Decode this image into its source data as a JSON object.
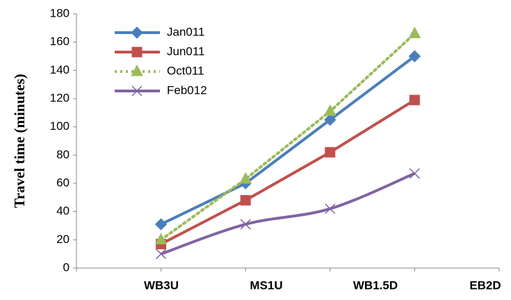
{
  "chart_data": {
    "type": "line",
    "y_label": "Travel time (minutes)",
    "categories": [
      "WB3U",
      "MS1U",
      "WB1.5D",
      "EB2D"
    ],
    "ylim": [
      0,
      180
    ],
    "yticks": [
      0,
      20,
      40,
      60,
      80,
      100,
      120,
      140,
      160,
      180
    ],
    "grid": false,
    "legend": "upper left",
    "series": [
      {
        "name": "Jan011",
        "color": "#4a7ebb",
        "marker": "diamond",
        "dash": "solid",
        "smooth": false,
        "values": [
          31,
          60,
          105,
          150
        ]
      },
      {
        "name": "Jun011",
        "color": "#c0504d",
        "marker": "square",
        "dash": "solid",
        "smooth": false,
        "values": [
          17,
          48,
          82,
          119
        ]
      },
      {
        "name": "Oct011",
        "color": "#9bbb59",
        "marker": "triangle",
        "dash": "dotted",
        "smooth": false,
        "values": [
          20,
          63,
          111,
          166
        ]
      },
      {
        "name": "Feb012",
        "color": "#8064a2",
        "marker": "x",
        "dash": "solid",
        "smooth": true,
        "values": [
          10,
          31,
          42,
          67
        ]
      }
    ]
  }
}
